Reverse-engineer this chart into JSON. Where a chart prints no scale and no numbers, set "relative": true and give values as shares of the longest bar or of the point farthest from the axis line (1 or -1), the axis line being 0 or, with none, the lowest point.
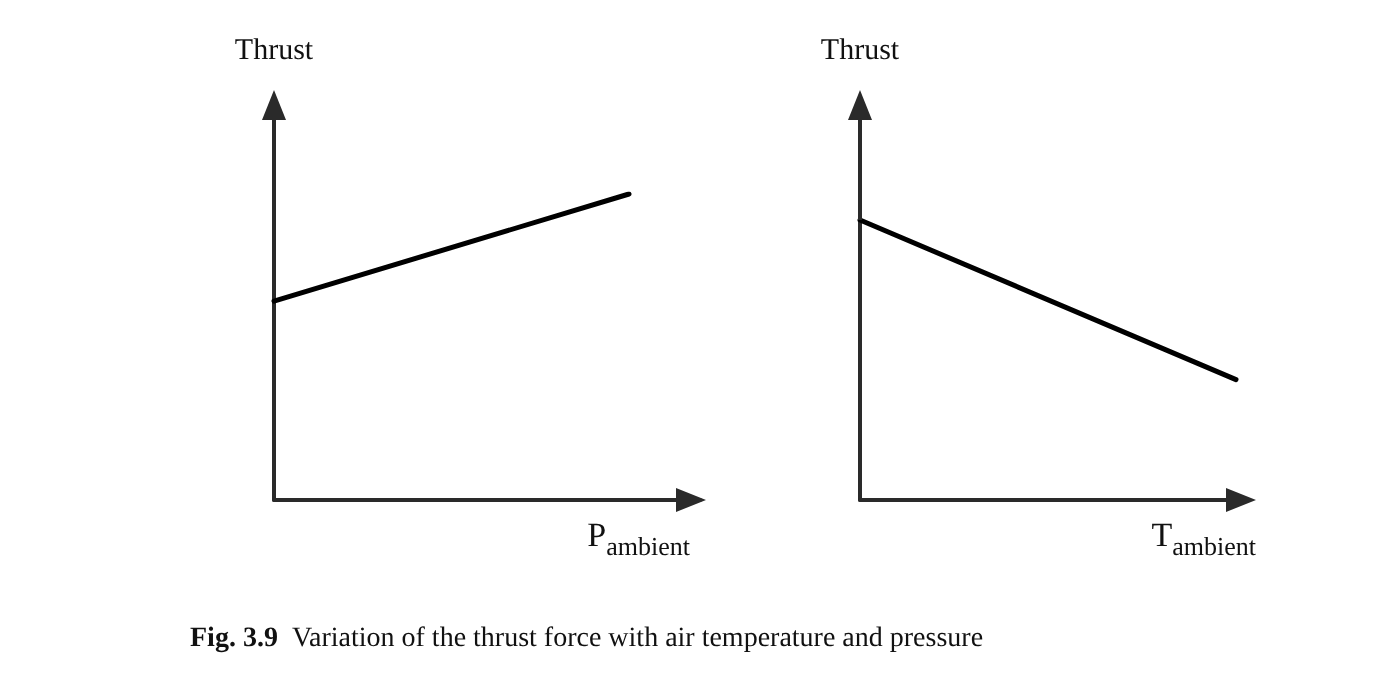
{
  "chart_data": [
    {
      "type": "line",
      "relative": true,
      "ylabel": "Thrust",
      "xlabel": "P$_{ambient}$",
      "categories": [
        null,
        null,
        null,
        null,
        null,
        null,
        null
      ],
      "series": [
        {
          "color": "#000000",
          "values": [
            0.65,
            null,
            null,
            null,
            null,
            1,
            null
          ]
        }
      ],
      "marker": "none",
      "line_style": "solid",
      "grid": false,
      "annotations": [
        "Fig. 3.9  Variation of the thrust force with air temperature and pressure"
      ]
    },
    {
      "type": "line",
      "relative": true,
      "ylabel": "Thrust",
      "xlabel": "T$_{ambient}$",
      "categories": [
        null,
        null
      ],
      "series": [
        {
          "color": "#000000",
          "values": [
            1,
            0.43
          ]
        }
      ],
      "marker": "none",
      "line_style": "solid",
      "grid": false
    }
  ]
}
